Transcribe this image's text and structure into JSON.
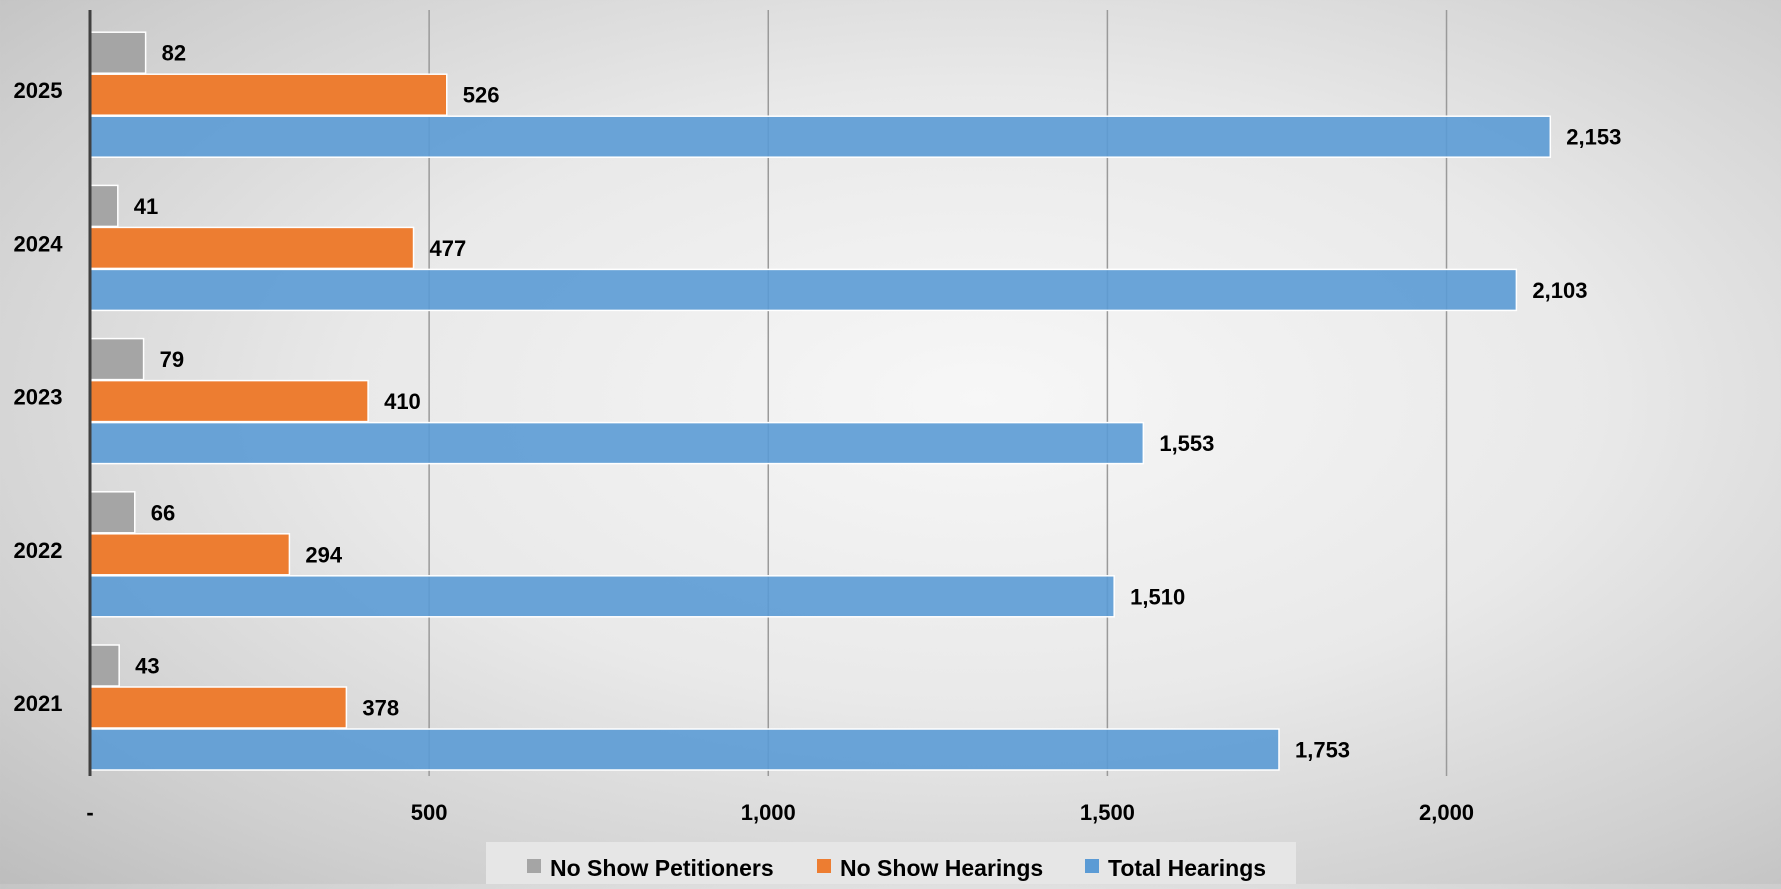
{
  "chart_data": {
    "type": "bar",
    "orientation": "horizontal",
    "categories": [
      "2021",
      "2022",
      "2023",
      "2024",
      "2025"
    ],
    "series": [
      {
        "name": "No Show Petitioners",
        "color": "#a5a5a5",
        "values": [
          43,
          66,
          79,
          41,
          82
        ],
        "labels": [
          "43",
          "66",
          "79",
          "41",
          "82"
        ]
      },
      {
        "name": "No Show Hearings",
        "color": "#ed7d31",
        "values": [
          378,
          294,
          410,
          477,
          526
        ],
        "labels": [
          "378",
          "294",
          "410",
          "477",
          "526"
        ]
      },
      {
        "name": "Total Hearings",
        "color": "#5b9bd5",
        "values": [
          1753,
          1510,
          1553,
          2103,
          2153
        ],
        "labels": [
          "1,753",
          "1,510",
          "1,553",
          "2,103",
          "2,153"
        ]
      }
    ],
    "xlim": [
      0,
      2300
    ],
    "xticks": [
      0,
      500,
      1000,
      1500,
      2000
    ],
    "xtick_labels": [
      "-",
      "500",
      "1,000",
      "1,500",
      "2,000"
    ],
    "grid": "vertical",
    "legend_position": "bottom",
    "title": "",
    "xlabel": "",
    "ylabel": ""
  }
}
